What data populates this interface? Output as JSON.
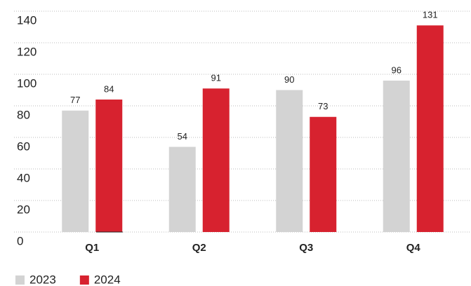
{
  "chart_data": {
    "type": "bar",
    "categories": [
      "Q1",
      "Q2",
      "Q3",
      "Q4"
    ],
    "series": [
      {
        "name": "2023",
        "color": "#d3d3d3",
        "values": [
          77,
          54,
          90,
          96
        ]
      },
      {
        "name": "2024",
        "color": "#d7222f",
        "values": [
          84,
          91,
          73,
          131
        ]
      }
    ],
    "ylim": [
      0,
      140
    ],
    "yticks": [
      0,
      20,
      40,
      60,
      80,
      100,
      120,
      140
    ],
    "grid": true,
    "legend": "bottom-left"
  }
}
